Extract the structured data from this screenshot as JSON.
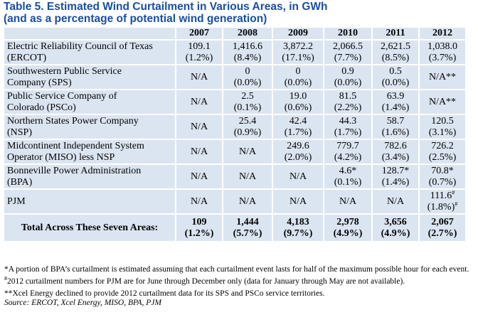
{
  "title": {
    "line1": "Table 5. Estimated Wind Curtailment in Various Areas, in GWh",
    "line2": "(and as a percentage of potential wind generation)"
  },
  "table": {
    "years": [
      "2007",
      "2008",
      "2009",
      "2010",
      "2011",
      "2012"
    ],
    "rows": [
      {
        "name": [
          "Electric Reliability Council of Texas",
          "(ERCOT)"
        ],
        "cells": [
          [
            "109.1",
            "(1.2%)"
          ],
          [
            "1,416.6",
            "(8.4%)"
          ],
          [
            "3,872.2",
            "(17.1%)"
          ],
          [
            "2,066.5",
            "(7.7%)"
          ],
          [
            "2,621.5",
            "(8.5%)"
          ],
          [
            "1,038.0",
            "(3.7%)"
          ]
        ]
      },
      {
        "name": [
          "Southwestern Public Service",
          "Company (SPS)"
        ],
        "cells": [
          [
            "N/A"
          ],
          [
            "0",
            "(0.0%)"
          ],
          [
            "0",
            "(0.0%)"
          ],
          [
            "0.9",
            "(0.0%)"
          ],
          [
            "0.5",
            "(0.0%)"
          ],
          [
            "N/A**"
          ]
        ]
      },
      {
        "name": [
          "Public Service Company of",
          "Colorado (PSCo)"
        ],
        "cells": [
          [
            "N/A"
          ],
          [
            "2.5",
            "(0.1%)"
          ],
          [
            "19.0",
            "(0.6%)"
          ],
          [
            "81.5",
            "(2.2%)"
          ],
          [
            "63.9",
            "(1.4%)"
          ],
          [
            "N/A**"
          ]
        ]
      },
      {
        "name": [
          "Northern States Power Company",
          "(NSP)"
        ],
        "cells": [
          [
            "N/A"
          ],
          [
            "25.4",
            "(0.9%)"
          ],
          [
            "42.4",
            "(1.7%)"
          ],
          [
            "44.3",
            "(1.7%)"
          ],
          [
            "58.7",
            "(1.6%)"
          ],
          [
            "120.5",
            "(3.1%)"
          ]
        ]
      },
      {
        "name": [
          "Midcontinent Independent System",
          "Operator (MISO) less NSP"
        ],
        "cells": [
          [
            "N/A"
          ],
          [
            "N/A"
          ],
          [
            "249.6",
            "(2.0%)"
          ],
          [
            "779.7",
            "(4.2%)"
          ],
          [
            "782.6",
            "(3.4%)"
          ],
          [
            "726.2",
            "(2.5%)"
          ]
        ]
      },
      {
        "name": [
          "Bonneville Power Administration",
          "(BPA)"
        ],
        "cells": [
          [
            "N/A"
          ],
          [
            "N/A"
          ],
          [
            "N/A"
          ],
          [
            "4.6*",
            "(0.1%)"
          ],
          [
            "128.7*",
            "(1.4%)"
          ],
          [
            "70.8*",
            "(0.7%)"
          ]
        ]
      },
      {
        "name": [
          "PJM"
        ],
        "cells": [
          [
            "N/A"
          ],
          [
            "N/A"
          ],
          [
            "N/A"
          ],
          [
            "N/A"
          ],
          [
            "N/A"
          ],
          [
            "111.6#",
            "(1.8%)#"
          ]
        ]
      }
    ],
    "total": {
      "label": "Total Across These Seven Areas:",
      "cells": [
        [
          "109",
          "(1.2%)"
        ],
        [
          "1,444",
          "(5.7%)"
        ],
        [
          "4,183",
          "(9.7%)"
        ],
        [
          "2,978",
          "(4.9%)"
        ],
        [
          "3,656",
          "(4.9%)"
        ],
        [
          "2,067",
          "(2.7%)"
        ]
      ]
    }
  },
  "notes": {
    "note1": "*A portion of BPA’s curtailment is estimated assuming that each curtailment event lasts for half of the maximum possible hour for each event.",
    "note2_mark": "#",
    "note2": "2012 curtailment numbers for PJM are for June through December only (data for January through May are not available).",
    "note3": "**Xcel Energy declined to provide 2012 curtailment data for its SPS and PSCo service territories.",
    "source": "Source: ERCOT, Xcel Energy, MISO, BPA, PJM"
  }
}
